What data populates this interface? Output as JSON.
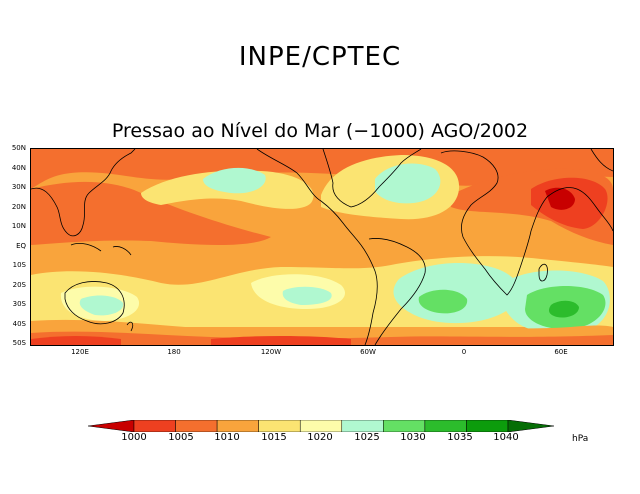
{
  "header": {
    "org": "INPE/CPTEC",
    "subtitle": "Pressao ao Nível do Mar (−1000) AGO/2002"
  },
  "map": {
    "lat_labels": [
      "50N",
      "40N",
      "30N",
      "20N",
      "10N",
      "EQ",
      "10S",
      "20S",
      "30S",
      "40S",
      "50S"
    ],
    "lon_labels": [
      "120E",
      "180",
      "120W",
      "60W",
      "0",
      "60E"
    ]
  },
  "legend": {
    "levels": [
      "1000",
      "1005",
      "1010",
      "1015",
      "1020",
      "1025",
      "1030",
      "1035",
      "1040"
    ],
    "unit": "hPa",
    "colors": [
      "#c80000",
      "#ee4020",
      "#f46f2e",
      "#f9a43c",
      "#fbe472",
      "#fdfcaa",
      "#b0f8d0",
      "#64e064",
      "#2cbc2c",
      "#0c9c0c",
      "#066e06"
    ]
  }
}
